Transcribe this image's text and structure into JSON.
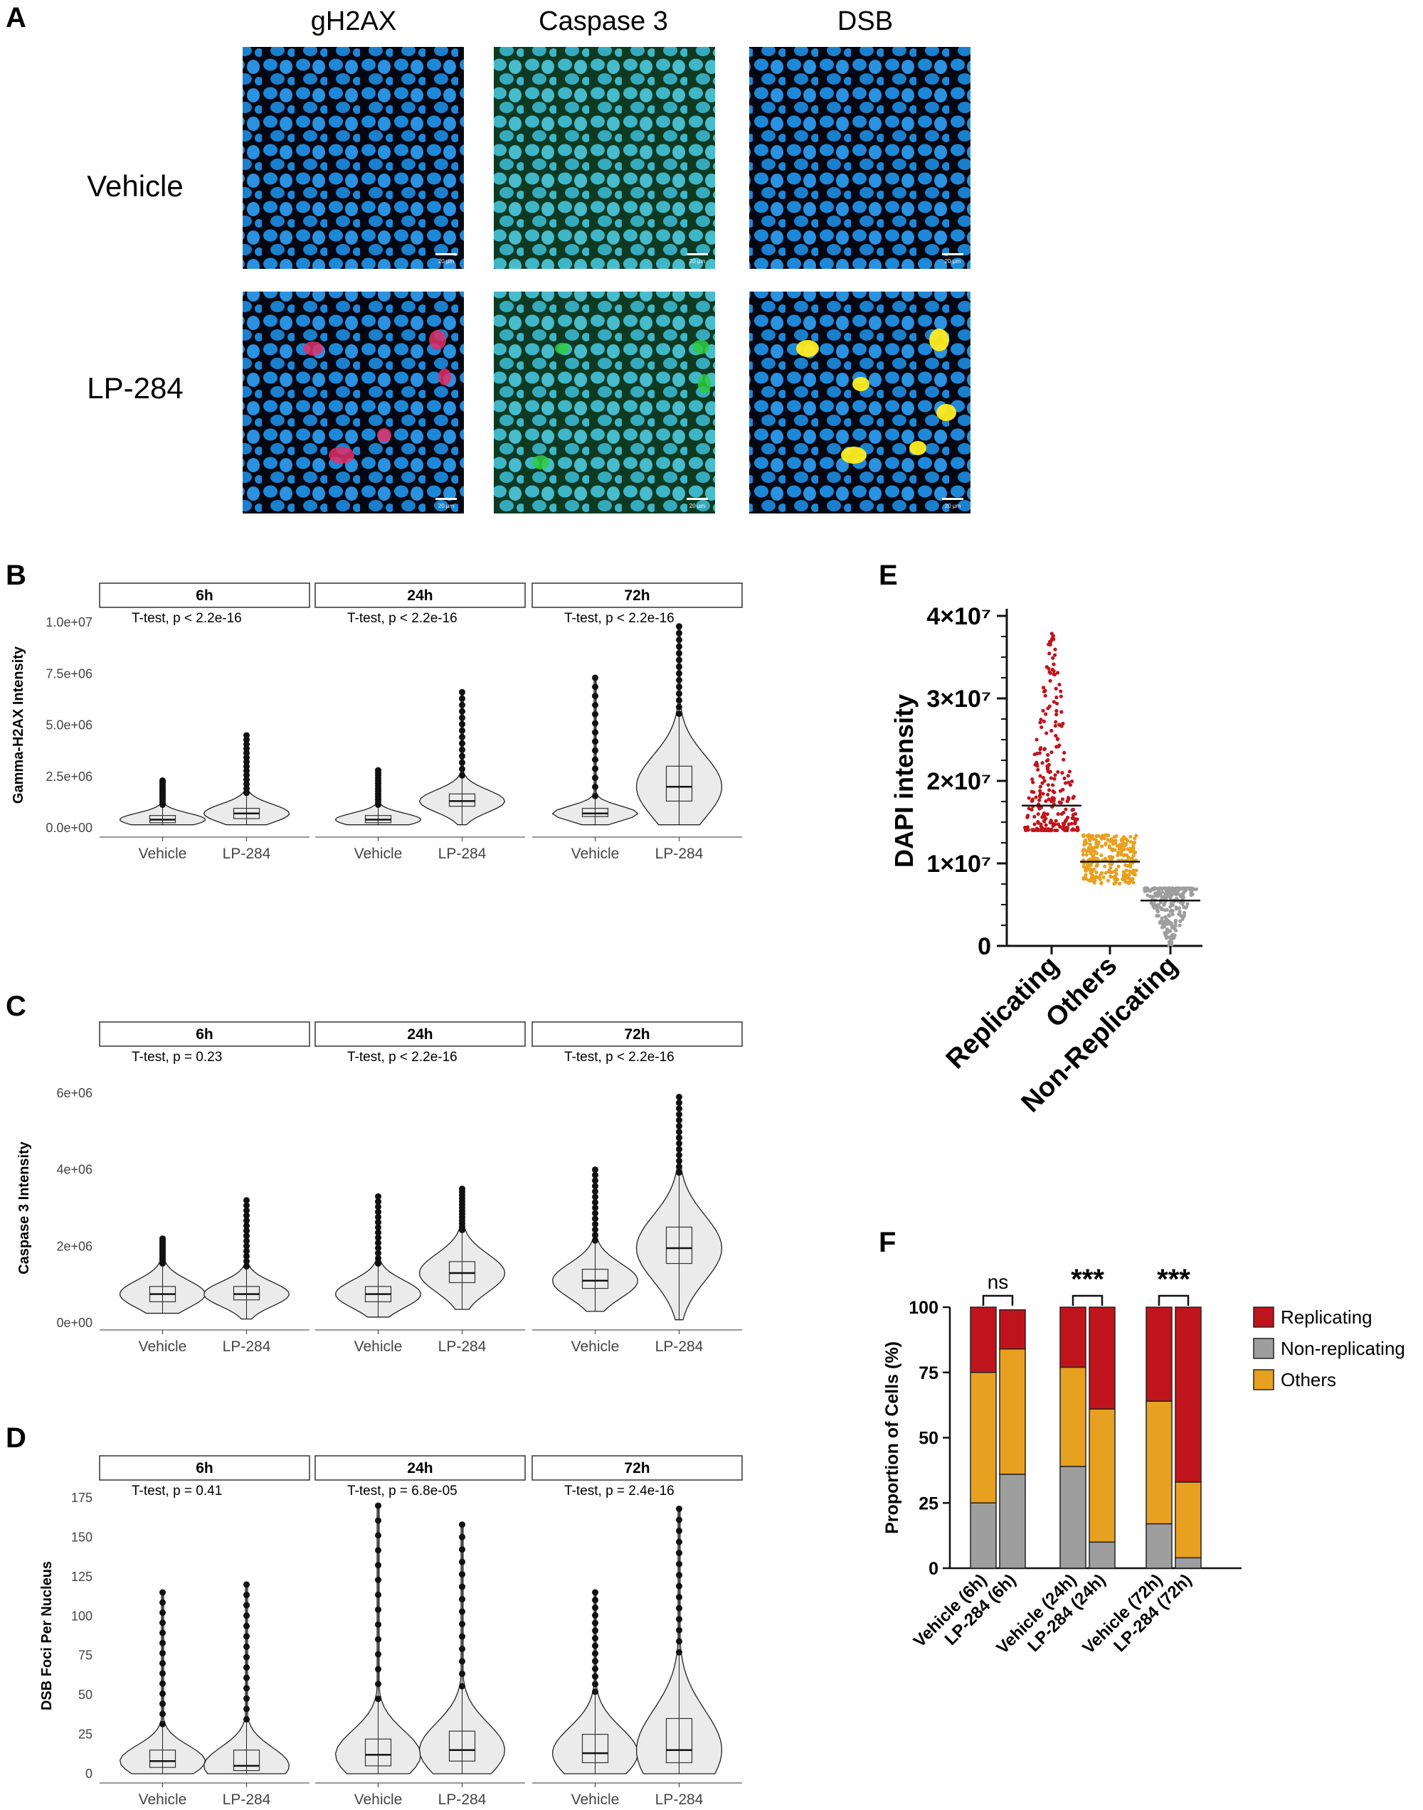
{
  "panel_letters": {
    "A": "A",
    "B": "B",
    "C": "C",
    "D": "D",
    "E": "E",
    "F": "F"
  },
  "panel_a": {
    "columns": [
      "gH2AX",
      "Caspase 3",
      "DSB"
    ],
    "rows": [
      "Vehicle",
      "LP-284"
    ],
    "scale_bar": "20 μm",
    "image_colors": {
      "nucleus": "#1e88d8",
      "caspase_tint": "#1a8a5a",
      "gh2ax_signal": "#e0306a",
      "dsb_signal": "#ffee22"
    }
  },
  "strip_titles": [
    "6h",
    "24h",
    "72h"
  ],
  "x_categories": [
    "Vehicle",
    "LP-284"
  ],
  "panel_b": {
    "ylabel": "Gamma-H2AX Intensity",
    "yticks": [
      "0.0e+00",
      "2.5e+06",
      "5.0e+06",
      "7.5e+06",
      "1.0e+07"
    ],
    "ylim": [
      0,
      10000000
    ],
    "tests": [
      "T-test, p < 2.2e-16",
      "T-test, p < 2.2e-16",
      "T-test, p < 2.2e-16"
    ]
  },
  "panel_c": {
    "ylabel": "Caspase 3 Intensity",
    "yticks": [
      "0e+00",
      "2e+06",
      "4e+06",
      "6e+06"
    ],
    "ylim": [
      0,
      6000000
    ],
    "tests": [
      "T-test, p = 0.23",
      "T-test, p < 2.2e-16",
      "T-test, p < 2.2e-16"
    ]
  },
  "panel_d": {
    "ylabel": "DSB Foci Per Nucleus",
    "yticks": [
      "0",
      "25",
      "50",
      "75",
      "100",
      "125",
      "150",
      "175"
    ],
    "ylim": [
      0,
      175
    ],
    "tests": [
      "T-test, p = 0.41",
      "T-test, p = 6.8e-05",
      "T-test, p = 2.4e-16"
    ]
  },
  "panel_e": {
    "ylabel": "DAPI intensity",
    "yticks": [
      "0",
      "1×10⁷",
      "2×10⁷",
      "3×10⁷",
      "4×10⁷"
    ],
    "categories": [
      "Replicating",
      "Others",
      "Non-Replicating"
    ],
    "colors": [
      "#c0141c",
      "#e8a020",
      "#9e9e9e"
    ]
  },
  "panel_f": {
    "ylabel": "Proportion of Cells (%)",
    "yticks": [
      "0",
      "25",
      "50",
      "75",
      "100"
    ],
    "categories": [
      "Vehicle (6h)",
      "LP-284 (6h)",
      "Vehicle (24h)",
      "LP-284 (24h)",
      "Vehicle (72h)",
      "LP-284 (72h)"
    ],
    "significance": [
      "ns",
      "***",
      "***"
    ],
    "legend": [
      "Replicating",
      "Non-replicating",
      "Others"
    ],
    "colors": {
      "Replicating": "#c0141c",
      "Non-replicating": "#9e9e9e",
      "Others": "#e8a020"
    }
  },
  "chart_data": [
    {
      "type": "violin",
      "panel": "B",
      "ylabel": "Gamma-H2AX Intensity",
      "ylim": [
        0,
        10000000
      ],
      "facets": [
        "6h",
        "24h",
        "72h"
      ],
      "categories": [
        "Vehicle",
        "LP-284"
      ],
      "median": [
        [
          400000,
          700000
        ],
        [
          400000,
          1300000
        ],
        [
          700000,
          2000000
        ]
      ],
      "q1": [
        [
          250000,
          450000
        ],
        [
          250000,
          1050000
        ],
        [
          550000,
          1300000
        ]
      ],
      "q3": [
        [
          600000,
          950000
        ],
        [
          600000,
          1650000
        ],
        [
          950000,
          3000000
        ]
      ],
      "min": [
        [
          150000,
          150000
        ],
        [
          150000,
          150000
        ],
        [
          150000,
          150000
        ]
      ],
      "max": [
        [
          2300000,
          4500000
        ],
        [
          2800000,
          6600000
        ],
        [
          7300000,
          9800000
        ]
      ]
    },
    {
      "type": "violin",
      "panel": "C",
      "ylabel": "Caspase 3 Intensity",
      "ylim": [
        0,
        6000000
      ],
      "facets": [
        "6h",
        "24h",
        "72h"
      ],
      "categories": [
        "Vehicle",
        "LP-284"
      ],
      "median": [
        [
          750000,
          750000
        ],
        [
          750000,
          1300000
        ],
        [
          1100000,
          1950000
        ]
      ],
      "q1": [
        [
          550000,
          600000
        ],
        [
          550000,
          1050000
        ],
        [
          900000,
          1550000
        ]
      ],
      "q3": [
        [
          950000,
          950000
        ],
        [
          950000,
          1600000
        ],
        [
          1400000,
          2500000
        ]
      ],
      "min": [
        [
          250000,
          100000
        ],
        [
          150000,
          350000
        ],
        [
          300000,
          80000
        ]
      ],
      "max": [
        [
          2200000,
          3200000
        ],
        [
          3300000,
          3500000
        ],
        [
          4000000,
          5900000
        ]
      ]
    },
    {
      "type": "violin",
      "panel": "D",
      "ylabel": "DSB Foci Per Nucleus",
      "ylim": [
        0,
        175
      ],
      "facets": [
        "6h",
        "24h",
        "72h"
      ],
      "categories": [
        "Vehicle",
        "LP-284"
      ],
      "median": [
        [
          8,
          5
        ],
        [
          12,
          15
        ],
        [
          13,
          15
        ]
      ],
      "q1": [
        [
          4,
          2
        ],
        [
          5,
          8
        ],
        [
          7,
          7
        ]
      ],
      "q3": [
        [
          15,
          15
        ],
        [
          22,
          27
        ],
        [
          25,
          35
        ]
      ],
      "min": [
        [
          0,
          0
        ],
        [
          0,
          0
        ],
        [
          0,
          0
        ]
      ],
      "max": [
        [
          115,
          120
        ],
        [
          170,
          158
        ],
        [
          115,
          168
        ]
      ]
    },
    {
      "type": "scatter",
      "panel": "E",
      "ylabel": "DAPI intensity",
      "ylim": [
        0,
        40000000
      ],
      "categories": [
        "Replicating",
        "Others",
        "Non-Replicating"
      ],
      "ranges": [
        [
          14000000,
          39500000
        ],
        [
          7500000,
          13500000
        ],
        [
          0,
          7000000
        ]
      ],
      "mean": [
        17000000,
        10200000,
        5500000
      ]
    },
    {
      "type": "bar",
      "stacked": true,
      "panel": "F",
      "ylabel": "Proportion of Cells (%)",
      "ylim": [
        0,
        100
      ],
      "categories": [
        "Vehicle (6h)",
        "LP-284 (6h)",
        "Vehicle (24h)",
        "LP-284 (24h)",
        "Vehicle (72h)",
        "LP-284 (72h)"
      ],
      "series": [
        {
          "name": "Non-replicating",
          "values": [
            25,
            36,
            39,
            10,
            17,
            4
          ]
        },
        {
          "name": "Others",
          "values": [
            50,
            48,
            38,
            51,
            47,
            29
          ]
        },
        {
          "name": "Replicating",
          "values": [
            25,
            15,
            23,
            39,
            36,
            67
          ]
        }
      ]
    }
  ]
}
